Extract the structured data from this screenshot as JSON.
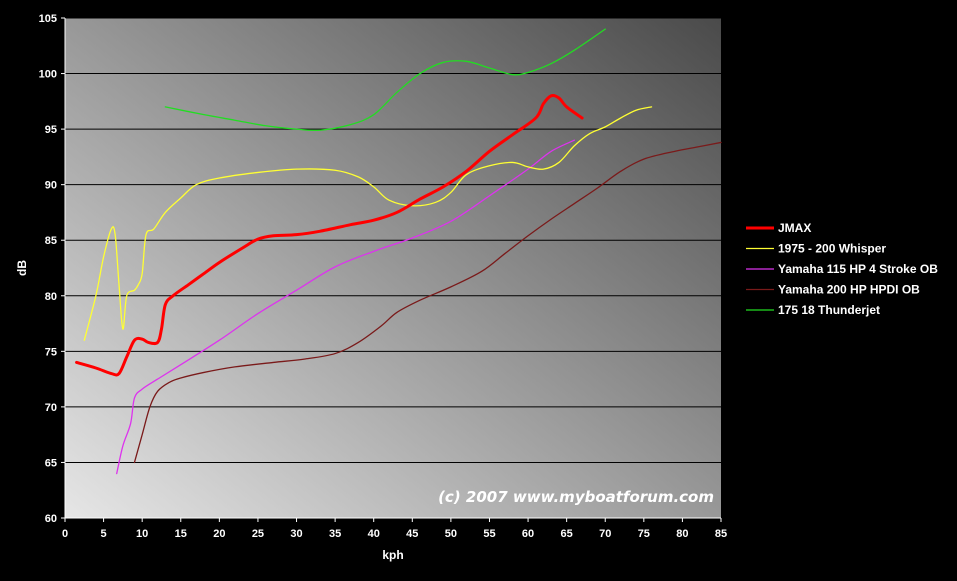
{
  "chart_data": {
    "type": "line",
    "title": "",
    "xlabel": "kph",
    "ylabel": "dB",
    "xlim": [
      0,
      85
    ],
    "ylim": [
      60,
      105
    ],
    "x_ticks": [
      0,
      5,
      10,
      15,
      20,
      25,
      30,
      35,
      40,
      45,
      50,
      55,
      60,
      65,
      70,
      75,
      80,
      85
    ],
    "y_ticks": [
      60,
      65,
      70,
      75,
      80,
      85,
      90,
      95,
      100,
      105
    ],
    "grid": "horizontal",
    "legend_position": "right",
    "annotation": "(c) 2007 www.myboatforum.com",
    "series": [
      {
        "name": "JMAX",
        "color": "#ff0000",
        "points": [
          [
            1.5,
            74
          ],
          [
            4,
            73.5
          ],
          [
            6,
            73
          ],
          [
            7,
            73
          ],
          [
            8,
            74.5
          ],
          [
            9,
            76
          ],
          [
            10,
            76.1
          ],
          [
            10.8,
            75.8
          ],
          [
            12,
            75.8
          ],
          [
            12.5,
            77
          ],
          [
            13,
            79.2
          ],
          [
            14,
            80
          ],
          [
            16,
            81
          ],
          [
            18,
            82
          ],
          [
            20,
            83
          ],
          [
            23,
            84.3
          ],
          [
            25,
            85.1
          ],
          [
            27,
            85.4
          ],
          [
            30,
            85.5
          ],
          [
            33,
            85.8
          ],
          [
            37,
            86.4
          ],
          [
            40,
            86.8
          ],
          [
            43,
            87.5
          ],
          [
            46,
            88.7
          ],
          [
            49,
            89.8
          ],
          [
            52,
            91.2
          ],
          [
            55,
            93
          ],
          [
            58,
            94.5
          ],
          [
            61,
            96
          ],
          [
            62,
            97.3
          ],
          [
            63,
            98
          ],
          [
            64,
            97.8
          ],
          [
            65,
            97
          ],
          [
            67,
            96
          ]
        ]
      },
      {
        "name": "1975 - 200 Whisper",
        "color": "#ffff33",
        "points": [
          [
            2.5,
            76
          ],
          [
            4,
            80
          ],
          [
            5,
            83.5
          ],
          [
            6,
            86
          ],
          [
            6.5,
            85.5
          ],
          [
            7,
            81
          ],
          [
            7.5,
            77
          ],
          [
            8,
            80
          ],
          [
            9,
            80.5
          ],
          [
            9.5,
            81
          ],
          [
            10,
            82
          ],
          [
            10.5,
            85.5
          ],
          [
            11.5,
            86
          ],
          [
            13,
            87.5
          ],
          [
            15,
            88.8
          ],
          [
            17,
            90
          ],
          [
            20,
            90.6
          ],
          [
            25,
            91.1
          ],
          [
            30,
            91.4
          ],
          [
            35,
            91.3
          ],
          [
            38,
            90.7
          ],
          [
            40,
            89.8
          ],
          [
            42,
            88.6
          ],
          [
            45,
            88.1
          ],
          [
            48,
            88.4
          ],
          [
            50,
            89.3
          ],
          [
            52,
            90.9
          ],
          [
            55,
            91.7
          ],
          [
            58,
            92
          ],
          [
            60,
            91.6
          ],
          [
            62,
            91.4
          ],
          [
            64,
            92
          ],
          [
            66,
            93.5
          ],
          [
            68,
            94.6
          ],
          [
            70,
            95.2
          ],
          [
            72,
            96
          ],
          [
            74,
            96.7
          ],
          [
            76,
            97
          ]
        ]
      },
      {
        "name": "Yamaha 115 HP 4 Stroke OB",
        "color": "#dd33ee",
        "points": [
          [
            6.7,
            64
          ],
          [
            7.5,
            66.5
          ],
          [
            8.5,
            68.5
          ],
          [
            9,
            70.8
          ],
          [
            10,
            71.6
          ],
          [
            12,
            72.5
          ],
          [
            15,
            73.8
          ],
          [
            20,
            76
          ],
          [
            25,
            78.4
          ],
          [
            30,
            80.5
          ],
          [
            35,
            82.6
          ],
          [
            40,
            84
          ],
          [
            45,
            85.2
          ],
          [
            50,
            86.7
          ],
          [
            55,
            89
          ],
          [
            60,
            91.4
          ],
          [
            63,
            93
          ],
          [
            66,
            94
          ]
        ]
      },
      {
        "name": "Yamaha 200 HP HPDI OB",
        "color": "#7a1a1a",
        "points": [
          [
            9,
            65
          ],
          [
            10,
            67.5
          ],
          [
            11,
            70
          ],
          [
            12,
            71.4
          ],
          [
            13.5,
            72.2
          ],
          [
            15,
            72.6
          ],
          [
            18,
            73.1
          ],
          [
            22,
            73.6
          ],
          [
            27,
            74
          ],
          [
            31,
            74.3
          ],
          [
            35,
            74.8
          ],
          [
            38,
            75.8
          ],
          [
            41,
            77.3
          ],
          [
            43,
            78.5
          ],
          [
            46,
            79.6
          ],
          [
            50,
            80.8
          ],
          [
            54,
            82.2
          ],
          [
            57,
            83.8
          ],
          [
            60,
            85.4
          ],
          [
            63,
            86.9
          ],
          [
            66,
            88.3
          ],
          [
            69,
            89.7
          ],
          [
            72,
            91.2
          ],
          [
            75,
            92.3
          ],
          [
            79,
            93
          ],
          [
            82,
            93.4
          ],
          [
            85,
            93.8
          ]
        ]
      },
      {
        "name": "175 18 Thunderjet",
        "color": "#22dd22",
        "points": [
          [
            13,
            97
          ],
          [
            18,
            96.3
          ],
          [
            22,
            95.8
          ],
          [
            26,
            95.3
          ],
          [
            30,
            95
          ],
          [
            33,
            94.9
          ],
          [
            37,
            95.4
          ],
          [
            40,
            96.3
          ],
          [
            43,
            98.3
          ],
          [
            46,
            100
          ],
          [
            49,
            101
          ],
          [
            52,
            101.1
          ],
          [
            55,
            100.5
          ],
          [
            58,
            99.9
          ],
          [
            60,
            100.1
          ],
          [
            63,
            100.9
          ],
          [
            66,
            102.1
          ],
          [
            70,
            104
          ]
        ]
      }
    ]
  }
}
